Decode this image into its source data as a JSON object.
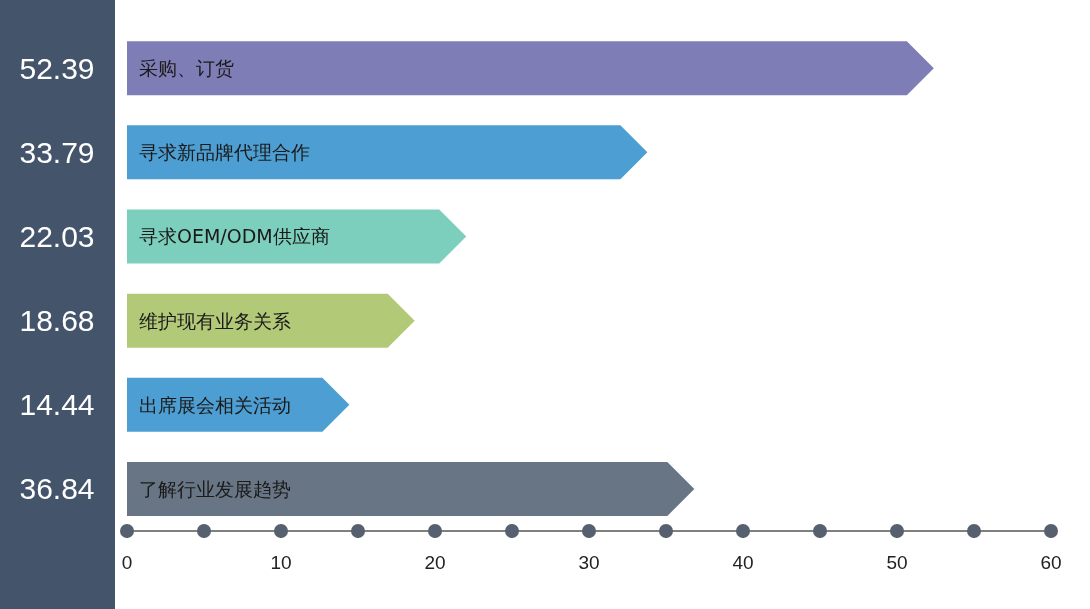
{
  "chart_data": {
    "type": "bar",
    "orientation": "horizontal",
    "categories": [
      "采购、订货",
      "寻求新品牌代理合作",
      "寻求OEM/ODM供应商",
      "维护现有业务关系",
      "出席展会相关活动",
      "了解行业发展趋势"
    ],
    "values": [
      52.39,
      33.79,
      22.03,
      18.68,
      14.44,
      36.84
    ],
    "colors": [
      "#7f7db5",
      "#4d9ed2",
      "#7dcfbd",
      "#b2c978",
      "#4d9ed2",
      "#687585"
    ],
    "data_labels": true,
    "xlim": [
      0,
      60
    ],
    "xticks": [
      0,
      {
        "value": 5,
        "label": null
      },
      10,
      {
        "value": 15,
        "label": null
      },
      20,
      {
        "value": 25,
        "label": null
      },
      30,
      {
        "value": 35,
        "label": null
      },
      40,
      {
        "value": 45,
        "label": null
      },
      50,
      {
        "value": 55,
        "label": null
      },
      60
    ],
    "grid": false,
    "legend": false
  }
}
